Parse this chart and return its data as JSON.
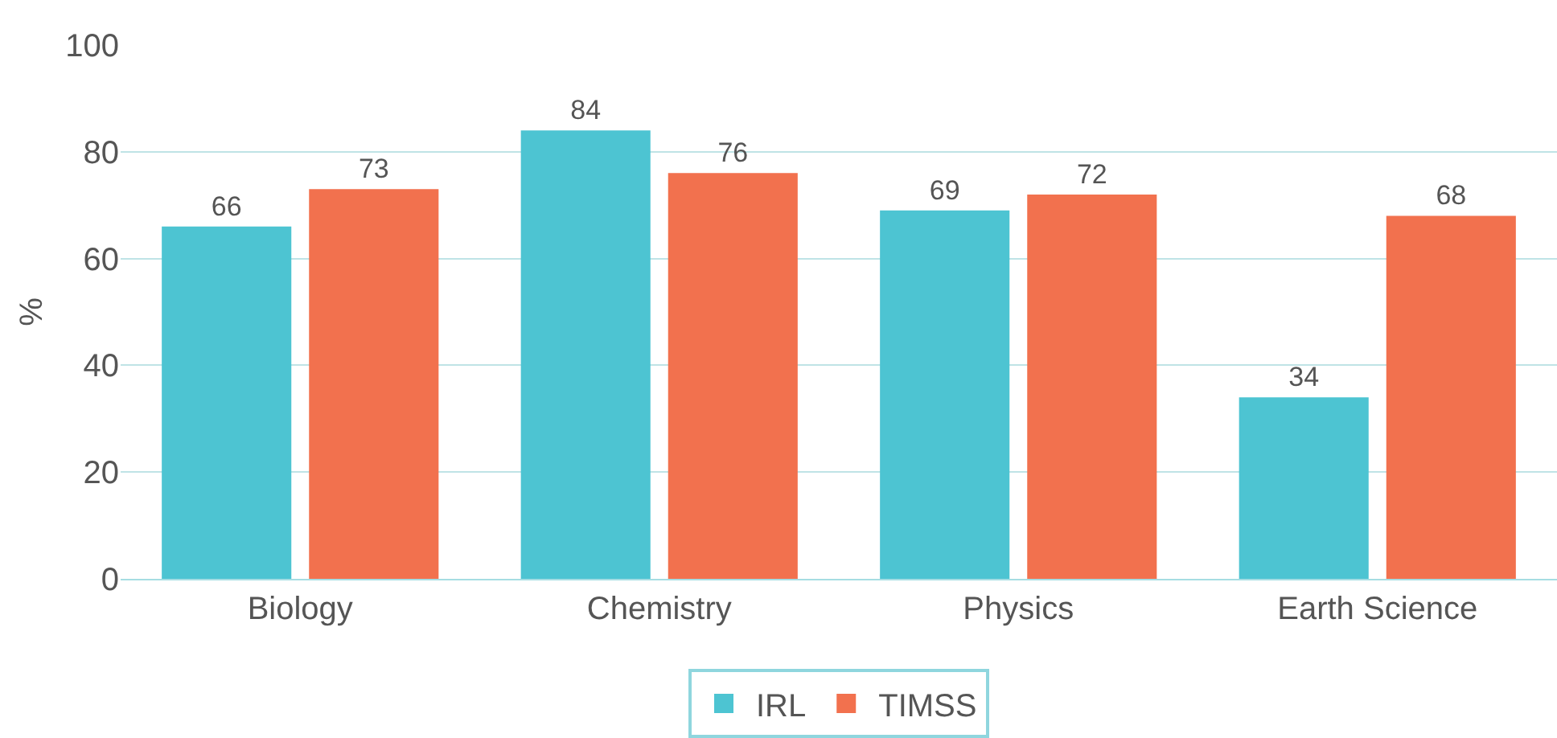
{
  "chart_data": {
    "type": "bar",
    "ylabel": "%",
    "categories": [
      "Biology",
      "Chemistry",
      "Physics",
      "Earth Science"
    ],
    "series": [
      {
        "name": "IRL",
        "color": "#4dc4d2",
        "values": [
          66,
          84,
          69,
          34
        ]
      },
      {
        "name": "TIMSS",
        "color": "#f2714e",
        "values": [
          73,
          76,
          72,
          68
        ]
      }
    ],
    "ylim": [
      0,
      100
    ],
    "yticks": [
      0,
      20,
      40,
      60,
      80,
      100
    ],
    "grid": "y",
    "legend": "bottom",
    "data_labels": true
  }
}
